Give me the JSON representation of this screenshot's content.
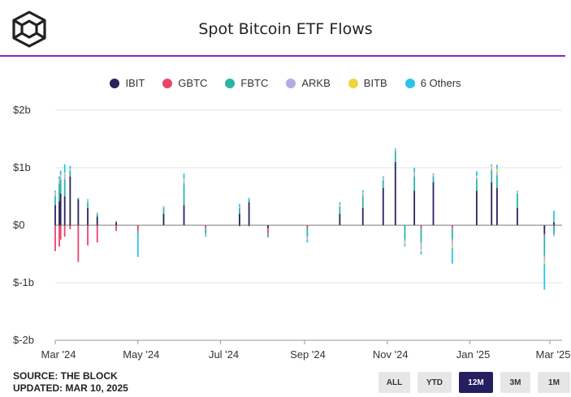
{
  "header": {
    "title": "Spot Bitcoin ETF Flows"
  },
  "colors": {
    "accent": "#7b2fc9",
    "active_button": "#241f5e"
  },
  "footer": {
    "source": "SOURCE: THE BLOCK",
    "updated": "UPDATED: MAR 10, 2025"
  },
  "range_buttons": [
    {
      "label": "ALL",
      "active": false
    },
    {
      "label": "YTD",
      "active": false
    },
    {
      "label": "12M",
      "active": true
    },
    {
      "label": "3M",
      "active": false
    },
    {
      "label": "1M",
      "active": false
    }
  ],
  "chart_data": {
    "type": "bar",
    "stacked": true,
    "title": "Spot Bitcoin ETF Flows",
    "xlabel": "",
    "ylabel": "",
    "ylim": [
      -2,
      2
    ],
    "y_unit": "billion USD",
    "yticks": [
      {
        "value": 2,
        "label": "$2b"
      },
      {
        "value": 1,
        "label": "$1b"
      },
      {
        "value": 0,
        "label": "$0"
      },
      {
        "value": -1,
        "label": "$-1b"
      },
      {
        "value": -2,
        "label": "$-2b"
      }
    ],
    "x_range": [
      "2024-03-01",
      "2025-03-10"
    ],
    "xticks": [
      {
        "date": "2024-03-01",
        "label": "Mar '24"
      },
      {
        "date": "2024-05-01",
        "label": "May '24"
      },
      {
        "date": "2024-07-01",
        "label": "Jul '24"
      },
      {
        "date": "2024-09-01",
        "label": "Sep '24"
      },
      {
        "date": "2024-11-01",
        "label": "Nov '24"
      },
      {
        "date": "2025-01-01",
        "label": "Jan '25"
      },
      {
        "date": "2025-03-01",
        "label": "Mar '25"
      }
    ],
    "series": [
      {
        "name": "IBIT",
        "color": "#27235e"
      },
      {
        "name": "GBTC",
        "color": "#e8456b"
      },
      {
        "name": "FBTC",
        "color": "#2bb5a5"
      },
      {
        "name": "ARKB",
        "color": "#b5a9e3"
      },
      {
        "name": "BITB",
        "color": "#f0d63e"
      },
      {
        "name": "6 Others",
        "color": "#2cc3e8"
      }
    ],
    "legend_position": "top",
    "daily_flows_sample": [
      {
        "date": "2024-03-01",
        "IBIT": 0.35,
        "GBTC": -0.45,
        "FBTC": 0.15,
        "ARKB": 0.05,
        "BITB": 0.02,
        "6 Others": 0.03
      },
      {
        "date": "2024-03-04",
        "IBIT": 0.42,
        "GBTC": -0.37,
        "FBTC": 0.3,
        "ARKB": 0.06,
        "BITB": 0.02,
        "6 Others": 0.05
      },
      {
        "date": "2024-03-05",
        "IBIT": 0.55,
        "GBTC": -0.25,
        "FBTC": 0.25,
        "ARKB": 0.05,
        "BITB": 0.02,
        "6 Others": 0.08
      },
      {
        "date": "2024-03-08",
        "IBIT": 0.5,
        "GBTC": -0.2,
        "FBTC": 0.3,
        "ARKB": 0.08,
        "BITB": 0.03,
        "6 Others": 0.15
      },
      {
        "date": "2024-03-12",
        "IBIT": 0.85,
        "GBTC": -0.07,
        "FBTC": 0.1,
        "ARKB": 0.02,
        "BITB": 0.01,
        "6 Others": 0.05
      },
      {
        "date": "2024-03-18",
        "IBIT": 0.45,
        "GBTC": -0.64,
        "FBTC": 0.02,
        "ARKB": 0.0,
        "BITB": 0.0,
        "6 Others": 0.01
      },
      {
        "date": "2024-03-25",
        "IBIT": 0.3,
        "GBTC": -0.35,
        "FBTC": 0.1,
        "ARKB": 0.02,
        "BITB": 0.01,
        "6 Others": 0.02
      },
      {
        "date": "2024-04-01",
        "IBIT": 0.15,
        "GBTC": -0.3,
        "FBTC": 0.05,
        "ARKB": 0.01,
        "BITB": 0.0,
        "6 Others": 0.01
      },
      {
        "date": "2024-04-15",
        "IBIT": 0.05,
        "GBTC": -0.1,
        "FBTC": 0.02,
        "ARKB": 0.0,
        "BITB": 0.0,
        "6 Others": 0.0
      },
      {
        "date": "2024-05-01",
        "IBIT": 0.0,
        "GBTC": -0.1,
        "FBTC": -0.05,
        "ARKB": 0.0,
        "BITB": 0.0,
        "6 Others": -0.4
      },
      {
        "date": "2024-05-20",
        "IBIT": 0.2,
        "GBTC": 0.0,
        "FBTC": 0.1,
        "ARKB": 0.01,
        "BITB": 0.0,
        "6 Others": 0.02
      },
      {
        "date": "2024-06-04",
        "IBIT": 0.35,
        "GBTC": 0.0,
        "FBTC": 0.38,
        "ARKB": 0.05,
        "BITB": 0.02,
        "6 Others": 0.1
      },
      {
        "date": "2024-06-20",
        "IBIT": 0.0,
        "GBTC": -0.05,
        "FBTC": -0.1,
        "ARKB": -0.03,
        "BITB": 0.0,
        "6 Others": -0.02
      },
      {
        "date": "2024-07-15",
        "IBIT": 0.2,
        "GBTC": -0.02,
        "FBTC": 0.1,
        "ARKB": 0.02,
        "BITB": 0.0,
        "6 Others": 0.05
      },
      {
        "date": "2024-07-22",
        "IBIT": 0.4,
        "GBTC": -0.02,
        "FBTC": 0.05,
        "ARKB": 0.01,
        "BITB": 0.0,
        "6 Others": 0.02
      },
      {
        "date": "2024-08-05",
        "IBIT": -0.05,
        "GBTC": -0.1,
        "FBTC": -0.05,
        "ARKB": -0.02,
        "BITB": 0.0,
        "6 Others": 0.0
      },
      {
        "date": "2024-09-03",
        "IBIT": 0.0,
        "GBTC": -0.05,
        "FBTC": -0.15,
        "ARKB": -0.05,
        "BITB": 0.0,
        "6 Others": -0.05
      },
      {
        "date": "2024-09-27",
        "IBIT": 0.2,
        "GBTC": 0.0,
        "FBTC": 0.12,
        "ARKB": 0.03,
        "BITB": 0.01,
        "6 Others": 0.04
      },
      {
        "date": "2024-10-14",
        "IBIT": 0.3,
        "GBTC": 0.0,
        "FBTC": 0.2,
        "ARKB": 0.05,
        "BITB": 0.02,
        "6 Others": 0.04
      },
      {
        "date": "2024-10-29",
        "IBIT": 0.65,
        "GBTC": 0.0,
        "FBTC": 0.13,
        "ARKB": 0.03,
        "BITB": 0.01,
        "6 Others": 0.03
      },
      {
        "date": "2024-11-07",
        "IBIT": 1.1,
        "GBTC": 0.0,
        "FBTC": 0.19,
        "ARKB": 0.02,
        "BITB": 0.01,
        "6 Others": 0.02
      },
      {
        "date": "2024-11-14",
        "IBIT": 0.0,
        "GBTC": 0.0,
        "FBTC": -0.25,
        "ARKB": -0.05,
        "BITB": -0.02,
        "6 Others": -0.05
      },
      {
        "date": "2024-11-21",
        "IBIT": 0.6,
        "GBTC": 0.0,
        "FBTC": 0.25,
        "ARKB": 0.05,
        "BITB": 0.02,
        "6 Others": 0.08
      },
      {
        "date": "2024-11-26",
        "IBIT": 0.0,
        "GBTC": -0.05,
        "FBTC": -0.25,
        "ARKB": -0.12,
        "BITB": -0.04,
        "6 Others": -0.05
      },
      {
        "date": "2024-12-05",
        "IBIT": 0.75,
        "GBTC": 0.0,
        "FBTC": 0.1,
        "ARKB": 0.02,
        "BITB": 0.01,
        "6 Others": 0.02
      },
      {
        "date": "2024-12-19",
        "IBIT": 0.0,
        "GBTC": -0.05,
        "FBTC": -0.2,
        "ARKB": -0.1,
        "BITB": -0.04,
        "6 Others": -0.28
      },
      {
        "date": "2025-01-06",
        "IBIT": 0.6,
        "GBTC": 0.0,
        "FBTC": 0.2,
        "ARKB": 0.04,
        "BITB": 0.02,
        "6 Others": 0.08
      },
      {
        "date": "2025-01-17",
        "IBIT": 0.75,
        "GBTC": 0.0,
        "FBTC": 0.2,
        "ARKB": 0.04,
        "BITB": 0.04,
        "6 Others": 0.03
      },
      {
        "date": "2025-01-21",
        "IBIT": 0.65,
        "GBTC": 0.0,
        "FBTC": 0.22,
        "ARKB": 0.06,
        "BITB": 0.05,
        "6 Others": 0.07
      },
      {
        "date": "2025-02-05",
        "IBIT": 0.3,
        "GBTC": 0.0,
        "FBTC": 0.25,
        "ARKB": 0.02,
        "BITB": 0.01,
        "6 Others": 0.02
      },
      {
        "date": "2025-02-25",
        "IBIT": -0.15,
        "GBTC": -0.03,
        "FBTC": -0.35,
        "ARKB": -0.1,
        "BITB": -0.04,
        "6 Others": -0.45
      },
      {
        "date": "2025-03-04",
        "IBIT": 0.05,
        "GBTC": 0.0,
        "FBTC": -0.15,
        "ARKB": -0.04,
        "BITB": 0.0,
        "6 Others": 0.2
      }
    ]
  }
}
